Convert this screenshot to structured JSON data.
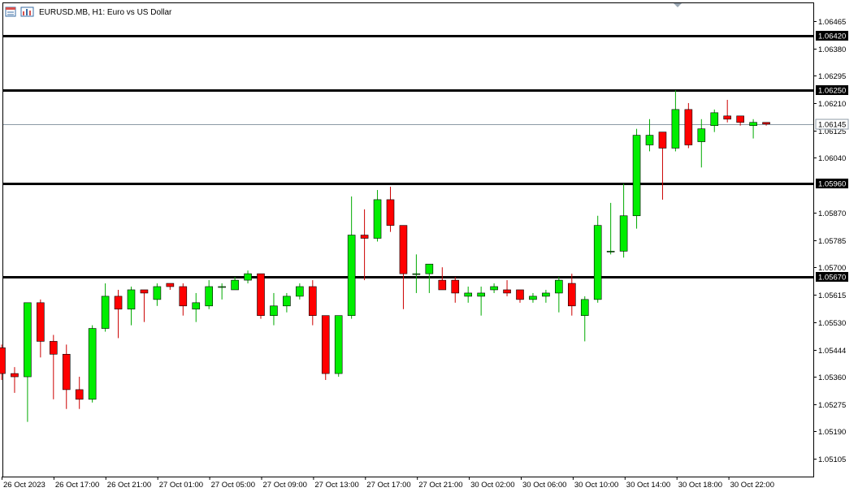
{
  "header": {
    "symbol": "EURUSD.MB",
    "timeframe": "H1",
    "description": "Euro vs US Dollar",
    "title_text": "EURUSD.MB, H1:  Euro vs US Dollar"
  },
  "colors": {
    "bull": "#00ee00",
    "bear": "#ff0000",
    "wick_bull": "#00aa00",
    "wick_bear": "#cc0000",
    "level_line": "#000000",
    "bid_line": "#8c9aa5",
    "axis": "#000000"
  },
  "chart_data": {
    "type": "candlestick",
    "ylim": [
      1.0505,
      1.0652
    ],
    "y_ticks": [
      "1.06465",
      "1.06380",
      "1.06295",
      "1.06210",
      "1.06125",
      "1.06040",
      "1.05870",
      "1.05785",
      "1.05700",
      "1.05615",
      "1.05530",
      "1.05444",
      "1.05360",
      "1.05275",
      "1.05190",
      "1.05105"
    ],
    "x_labels": [
      "26 Oct 2023",
      "26 Oct 17:00",
      "26 Oct 21:00",
      "27 Oct 01:00",
      "27 Oct 05:00",
      "27 Oct 09:00",
      "27 Oct 13:00",
      "27 Oct 17:00",
      "27 Oct 21:00",
      "30 Oct 02:00",
      "30 Oct 06:00",
      "30 Oct 10:00",
      "30 Oct 14:00",
      "30 Oct 18:00",
      "30 Oct 22:00"
    ],
    "levels": [
      {
        "price": 1.0642,
        "label": "1.06420"
      },
      {
        "price": 1.0625,
        "label": "1.06250"
      },
      {
        "price": 1.0596,
        "label": "1.05960"
      },
      {
        "price": 1.0567,
        "label": "1.05670"
      }
    ],
    "current_price": {
      "price": 1.06145,
      "label": "1.06145"
    },
    "candles": [
      {
        "o": 1.0545,
        "h": 1.0546,
        "l": 1.0535,
        "c": 1.0537
      },
      {
        "o": 1.0537,
        "h": 1.0539,
        "l": 1.0531,
        "c": 1.0536
      },
      {
        "o": 1.0536,
        "h": 1.0559,
        "l": 1.0522,
        "c": 1.0559
      },
      {
        "o": 1.0559,
        "h": 1.056,
        "l": 1.0542,
        "c": 1.0547
      },
      {
        "o": 1.0547,
        "h": 1.0549,
        "l": 1.0529,
        "c": 1.0543
      },
      {
        "o": 1.0543,
        "h": 1.0546,
        "l": 1.0526,
        "c": 1.0532
      },
      {
        "o": 1.0532,
        "h": 1.0536,
        "l": 1.0526,
        "c": 1.0529
      },
      {
        "o": 1.0529,
        "h": 1.0552,
        "l": 1.0528,
        "c": 1.0551
      },
      {
        "o": 1.0551,
        "h": 1.0565,
        "l": 1.055,
        "c": 1.0561
      },
      {
        "o": 1.0561,
        "h": 1.0563,
        "l": 1.0548,
        "c": 1.0557
      },
      {
        "o": 1.0557,
        "h": 1.0564,
        "l": 1.0552,
        "c": 1.0563
      },
      {
        "o": 1.0563,
        "h": 1.0563,
        "l": 1.0553,
        "c": 1.0562
      },
      {
        "o": 1.056,
        "h": 1.0565,
        "l": 1.0558,
        "c": 1.0564
      },
      {
        "o": 1.0565,
        "h": 1.0565,
        "l": 1.0563,
        "c": 1.0564
      },
      {
        "o": 1.0564,
        "h": 1.0565,
        "l": 1.0555,
        "c": 1.0558
      },
      {
        "o": 1.0557,
        "h": 1.0562,
        "l": 1.0553,
        "c": 1.0559
      },
      {
        "o": 1.0558,
        "h": 1.0566,
        "l": 1.0557,
        "c": 1.0564
      },
      {
        "o": 1.0564,
        "h": 1.0565,
        "l": 1.056,
        "c": 1.0564
      },
      {
        "o": 1.0563,
        "h": 1.0567,
        "l": 1.0563,
        "c": 1.0566
      },
      {
        "o": 1.0566,
        "h": 1.0569,
        "l": 1.0565,
        "c": 1.0568
      },
      {
        "o": 1.0568,
        "h": 1.0568,
        "l": 1.0554,
        "c": 1.0555
      },
      {
        "o": 1.0555,
        "h": 1.0562,
        "l": 1.0552,
        "c": 1.0558
      },
      {
        "o": 1.0558,
        "h": 1.0562,
        "l": 1.0556,
        "c": 1.0561
      },
      {
        "o": 1.0561,
        "h": 1.0565,
        "l": 1.056,
        "c": 1.0564
      },
      {
        "o": 1.0564,
        "h": 1.0566,
        "l": 1.0552,
        "c": 1.0555
      },
      {
        "o": 1.0555,
        "h": 1.0555,
        "l": 1.0535,
        "c": 1.0537
      },
      {
        "o": 1.0537,
        "h": 1.0555,
        "l": 1.0536,
        "c": 1.0555
      },
      {
        "o": 1.0555,
        "h": 1.0592,
        "l": 1.0554,
        "c": 1.058
      },
      {
        "o": 1.058,
        "h": 1.0588,
        "l": 1.0566,
        "c": 1.0579
      },
      {
        "o": 1.0579,
        "h": 1.0594,
        "l": 1.0578,
        "c": 1.0591
      },
      {
        "o": 1.0591,
        "h": 1.0595,
        "l": 1.0581,
        "c": 1.0583
      },
      {
        "o": 1.0583,
        "h": 1.0583,
        "l": 1.0557,
        "c": 1.0568
      },
      {
        "o": 1.0568,
        "h": 1.0574,
        "l": 1.0562,
        "c": 1.0568
      },
      {
        "o": 1.0568,
        "h": 1.0571,
        "l": 1.0562,
        "c": 1.0571
      },
      {
        "o": 1.0566,
        "h": 1.057,
        "l": 1.0563,
        "c": 1.0563
      },
      {
        "o": 1.0566,
        "h": 1.0567,
        "l": 1.0559,
        "c": 1.0562
      },
      {
        "o": 1.0561,
        "h": 1.0564,
        "l": 1.0559,
        "c": 1.0562
      },
      {
        "o": 1.0561,
        "h": 1.0564,
        "l": 1.0555,
        "c": 1.0562
      },
      {
        "o": 1.0563,
        "h": 1.0565,
        "l": 1.0562,
        "c": 1.0564
      },
      {
        "o": 1.0563,
        "h": 1.0566,
        "l": 1.0561,
        "c": 1.0562
      },
      {
        "o": 1.0563,
        "h": 1.0563,
        "l": 1.0559,
        "c": 1.056
      },
      {
        "o": 1.056,
        "h": 1.0562,
        "l": 1.0559,
        "c": 1.0561
      },
      {
        "o": 1.0561,
        "h": 1.0563,
        "l": 1.0559,
        "c": 1.0562
      },
      {
        "o": 1.0562,
        "h": 1.0567,
        "l": 1.0556,
        "c": 1.0566
      },
      {
        "o": 1.0565,
        "h": 1.0568,
        "l": 1.0555,
        "c": 1.0558
      },
      {
        "o": 1.0555,
        "h": 1.0561,
        "l": 1.0547,
        "c": 1.056
      },
      {
        "o": 1.056,
        "h": 1.0586,
        "l": 1.0559,
        "c": 1.0583
      },
      {
        "o": 1.0575,
        "h": 1.059,
        "l": 1.0574,
        "c": 1.0575
      },
      {
        "o": 1.0575,
        "h": 1.0596,
        "l": 1.0573,
        "c": 1.0586
      },
      {
        "o": 1.0586,
        "h": 1.0613,
        "l": 1.0582,
        "c": 1.0611
      },
      {
        "o": 1.0608,
        "h": 1.0616,
        "l": 1.0606,
        "c": 1.0611
      },
      {
        "o": 1.0612,
        "h": 1.0612,
        "l": 1.0591,
        "c": 1.0607
      },
      {
        "o": 1.0607,
        "h": 1.0625,
        "l": 1.0606,
        "c": 1.0619
      },
      {
        "o": 1.0619,
        "h": 1.0621,
        "l": 1.0607,
        "c": 1.0608
      },
      {
        "o": 1.0609,
        "h": 1.0616,
        "l": 1.0601,
        "c": 1.0613
      },
      {
        "o": 1.0614,
        "h": 1.0619,
        "l": 1.0612,
        "c": 1.0618
      },
      {
        "o": 1.0617,
        "h": 1.0622,
        "l": 1.0615,
        "c": 1.0616
      },
      {
        "o": 1.0617,
        "h": 1.0617,
        "l": 1.0614,
        "c": 1.0615
      },
      {
        "o": 1.0614,
        "h": 1.0616,
        "l": 1.061,
        "c": 1.0615
      },
      {
        "o": 1.0615,
        "h": 1.0615,
        "l": 1.0614,
        "c": 1.06145
      }
    ]
  }
}
